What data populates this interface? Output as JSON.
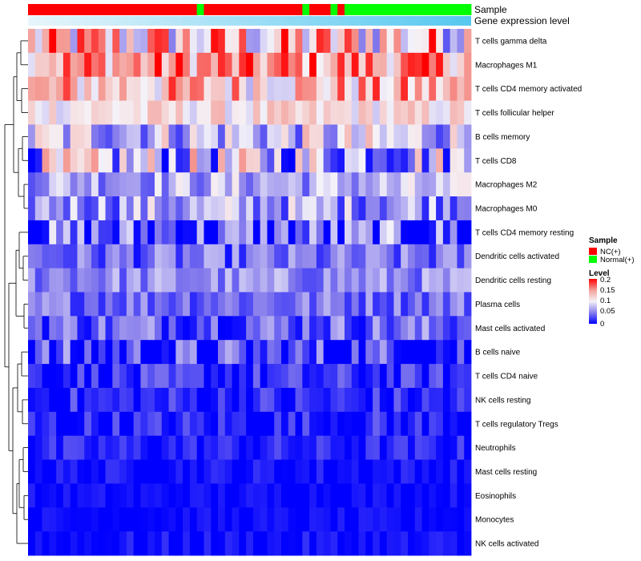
{
  "chart_data": {
    "type": "heatmap",
    "title": "",
    "annotations": [
      {
        "name": "Sample"
      },
      {
        "name": "Gene expression level"
      }
    ],
    "sample_groups": [
      "NC",
      "NC",
      "NC",
      "NC",
      "NC",
      "NC",
      "NC",
      "NC",
      "NC",
      "NC",
      "NC",
      "NC",
      "NC",
      "NC",
      "NC",
      "NC",
      "NC",
      "NC",
      "NC",
      "NC",
      "NC",
      "NC",
      "NC",
      "NC",
      "Normal",
      "NC",
      "NC",
      "NC",
      "NC",
      "NC",
      "NC",
      "NC",
      "NC",
      "NC",
      "NC",
      "NC",
      "NC",
      "NC",
      "NC",
      "Normal",
      "NC",
      "NC",
      "NC",
      "Normal",
      "NC",
      "Normal",
      "Normal",
      "Normal",
      "Normal",
      "Normal",
      "Normal",
      "Normal",
      "Normal",
      "Normal",
      "Normal",
      "Normal",
      "Normal",
      "Normal",
      "Normal",
      "Normal",
      "Normal",
      "Normal",
      "Normal"
    ],
    "group_colors": {
      "NC": "#ff0000",
      "Normal": "#00ff00"
    },
    "expression_bar_colors": [
      "#e8f5fb",
      "#56c8f0"
    ],
    "rows": [
      "T cells gamma delta",
      "Macrophages M1",
      "T cells CD4 memory activated",
      "T cells follicular helper",
      "B cells memory",
      "T cells CD8",
      "Macrophages M2",
      "Macrophages M0",
      "T cells CD4 memory resting",
      "Dendritic cells activated",
      "Dendritic cells resting",
      "Plasma cells",
      "Mast cells activated",
      "B cells naive",
      "T cells CD4 naive",
      "NK cells resting",
      "T cells regulatory  Tregs",
      "Neutrophils",
      "Mast cells resting",
      "Eosinophils",
      "Monocytes",
      "NK cells activated"
    ],
    "row_means": [
      0.12,
      0.15,
      0.13,
      0.11,
      0.08,
      0.075,
      0.07,
      0.065,
      0.03,
      0.04,
      0.055,
      0.045,
      0.04,
      0.015,
      0.015,
      0.012,
      0.01,
      0.012,
      0.006,
      0.004,
      0.003,
      0.004
    ],
    "row_spreads": [
      0.09,
      0.06,
      0.06,
      0.03,
      0.06,
      0.08,
      0.04,
      0.05,
      0.07,
      0.035,
      0.03,
      0.03,
      0.04,
      0.06,
      0.03,
      0.03,
      0.03,
      0.02,
      0.015,
      0.01,
      0.01,
      0.015
    ],
    "n_columns": 63,
    "color_scale": {
      "stops": [
        0,
        0.05,
        0.1,
        0.15,
        0.2
      ],
      "colors": [
        "#0000ff",
        "#8a80ec",
        "#f5f3f8",
        "#f4a09a",
        "#ff0000"
      ]
    },
    "legend": {
      "sample_title": "Sample",
      "sample_items": [
        "NC(+)",
        "Normal(+)"
      ],
      "level_title": "Level",
      "level_ticks": [
        "0.2",
        "0.15",
        "0.1",
        "0.05",
        "0"
      ],
      "position": "right"
    }
  }
}
